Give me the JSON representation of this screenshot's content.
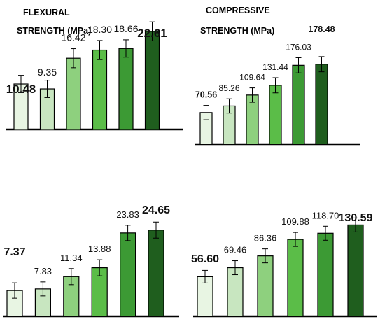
{
  "panel_titles": {
    "flexural_line1": "FLEXURAL",
    "flexural_line2": "STRENGTH (MPa)",
    "compressive_line1": "COMPRESSIVE",
    "compressive_line2": "STRENGTH (MPa)"
  },
  "palette": [
    "#e8f5e3",
    "#c8e6c0",
    "#8ed07e",
    "#5bbd48",
    "#3c9a34",
    "#1f5e1e"
  ],
  "chart_data": [
    {
      "type": "bar",
      "title": "FLEXURAL STRENGTH (MPa)",
      "values": [
        10.48,
        9.35,
        16.42,
        18.3,
        18.66,
        22.61
      ],
      "labels": [
        "10.48",
        "9.35",
        "16.42",
        "18.30",
        "18.66",
        "22.61"
      ],
      "bold_labels": [
        0,
        5
      ],
      "errors": [
        2.0,
        2.0,
        2.2,
        2.2,
        2.0,
        2.2
      ],
      "ylim": [
        0,
        35
      ],
      "grid": false,
      "legend": "none"
    },
    {
      "type": "bar",
      "title": "COMPRESSIVE STRENGTH (MPa)",
      "values": [
        70.56,
        85.26,
        109.64,
        131.44,
        176.03,
        178.48
      ],
      "labels": [
        "70.56",
        "85.26",
        "109.64",
        "131.44",
        "176.03",
        "178.48"
      ],
      "bold_labels": [
        0,
        5
      ],
      "errors": [
        16,
        16,
        16,
        17,
        17,
        17
      ],
      "ylim": [
        0,
        270
      ],
      "grid": false,
      "legend": "none"
    },
    {
      "type": "bar",
      "title": "",
      "values": [
        7.37,
        7.83,
        11.34,
        13.88,
        23.83,
        24.65
      ],
      "labels": [
        "7.37",
        "7.83",
        "11.34",
        "13.88",
        "23.83",
        "24.65"
      ],
      "bold_labels": [
        0,
        5
      ],
      "errors": [
        2.2,
        2.0,
        2.3,
        2.3,
        2.2,
        2.3
      ],
      "ylim": [
        0,
        35
      ],
      "grid": false,
      "legend": "none"
    },
    {
      "type": "bar",
      "title": "",
      "values": [
        56.6,
        69.46,
        86.36,
        109.88,
        118.7,
        130.59
      ],
      "labels": [
        "56.60",
        "69.46",
        "86.36",
        "109.88",
        "118.70",
        "130.59"
      ],
      "bold_labels": [
        0,
        5
      ],
      "errors": [
        9,
        10,
        10,
        10,
        10,
        10
      ],
      "ylim": [
        0,
        200
      ],
      "grid": false,
      "legend": "none"
    }
  ]
}
